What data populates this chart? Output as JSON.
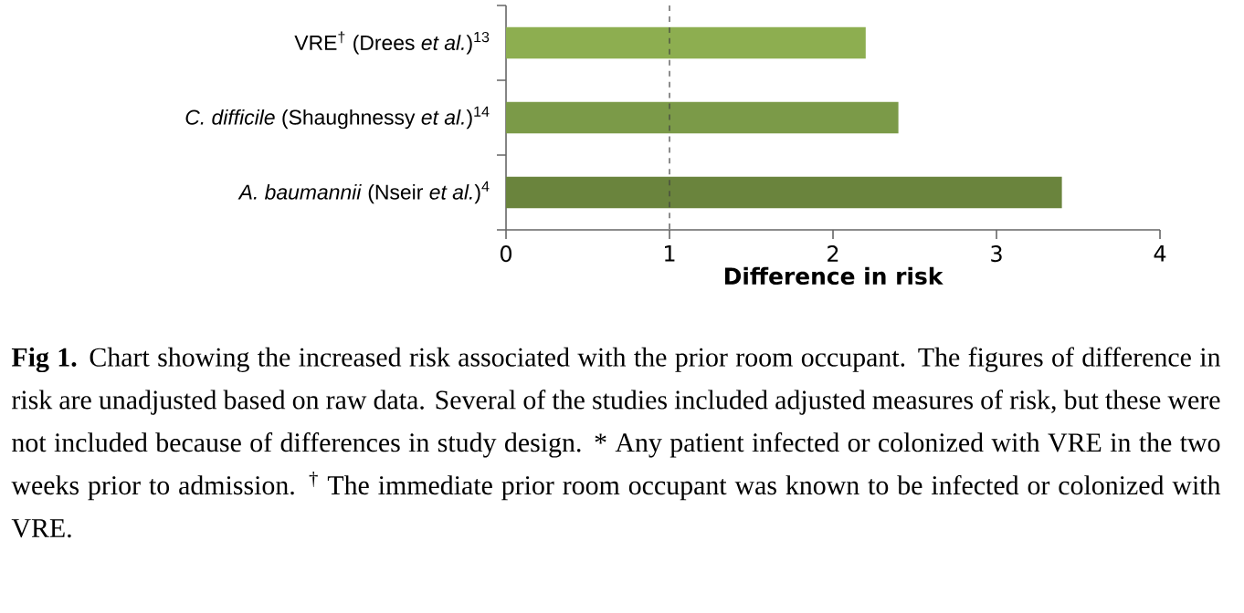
{
  "chart_data": {
    "type": "bar",
    "orientation": "horizontal",
    "categories": [
      "VRE$^{†}$ (Drees *et al.*)$^{13}$",
      "*C. difficile* (Shaughnessy *et al.*)$^{14}$",
      "*A. baumannii* (Nseir *et al.*)$^{4}$"
    ],
    "values": [
      2.2,
      2.4,
      3.4
    ],
    "colors": [
      "#8dae50",
      "#7b9a48",
      "#6a843d"
    ],
    "xlim": [
      0,
      4
    ],
    "xticks": [
      0,
      1,
      2,
      3,
      4
    ],
    "xlabel": "Difference in risk",
    "ref_lines": [
      {
        "axis": "x",
        "value": 1,
        "line_style": "dashed",
        "color": "#404040"
      }
    ],
    "annotations": [
      "**Fig 1.** Chart showing the increased risk associated with the prior room occupant. The figures of difference in risk are unadjusted based on raw data. Several of the studies included adjusted measures of risk, but these were not included because of differences in study design. * Any patient infected or colonized with VRE in the two weeks prior to admission. $^{†}$ The immediate prior room occupant was known to be infected or colonized with VRE."
    ]
  }
}
